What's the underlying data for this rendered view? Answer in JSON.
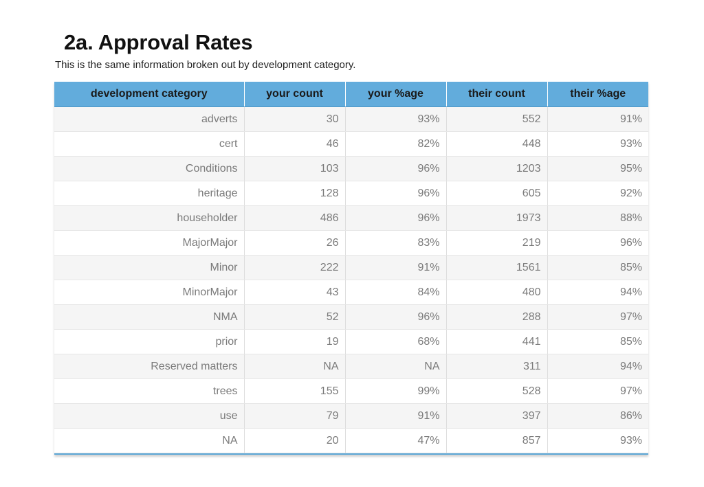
{
  "page": {
    "title": "2a. Approval Rates",
    "subtitle": "This is the same information broken out by development category."
  },
  "table": {
    "headers": [
      "development category",
      "your count",
      "your %age",
      "their count",
      "their %age"
    ],
    "rows": [
      [
        "adverts",
        "30",
        "93%",
        "552",
        "91%"
      ],
      [
        "cert",
        "46",
        "82%",
        "448",
        "93%"
      ],
      [
        "Conditions",
        "103",
        "96%",
        "1203",
        "95%"
      ],
      [
        "heritage",
        "128",
        "96%",
        "605",
        "92%"
      ],
      [
        "householder",
        "486",
        "96%",
        "1973",
        "88%"
      ],
      [
        "MajorMajor",
        "26",
        "83%",
        "219",
        "96%"
      ],
      [
        "Minor",
        "222",
        "91%",
        "1561",
        "85%"
      ],
      [
        "MinorMajor",
        "43",
        "84%",
        "480",
        "94%"
      ],
      [
        "NMA",
        "52",
        "96%",
        "288",
        "97%"
      ],
      [
        "prior",
        "19",
        "68%",
        "441",
        "85%"
      ],
      [
        "Reserved matters",
        "NA",
        "NA",
        "311",
        "94%"
      ],
      [
        "trees",
        "155",
        "99%",
        "528",
        "97%"
      ],
      [
        "use",
        "79",
        "91%",
        "397",
        "86%"
      ],
      [
        "NA",
        "20",
        "47%",
        "857",
        "93%"
      ]
    ]
  },
  "colors": {
    "header_bg": "#62acdc",
    "row_alt_bg": "#f5f5f5",
    "cell_text": "#7a7a7a"
  }
}
